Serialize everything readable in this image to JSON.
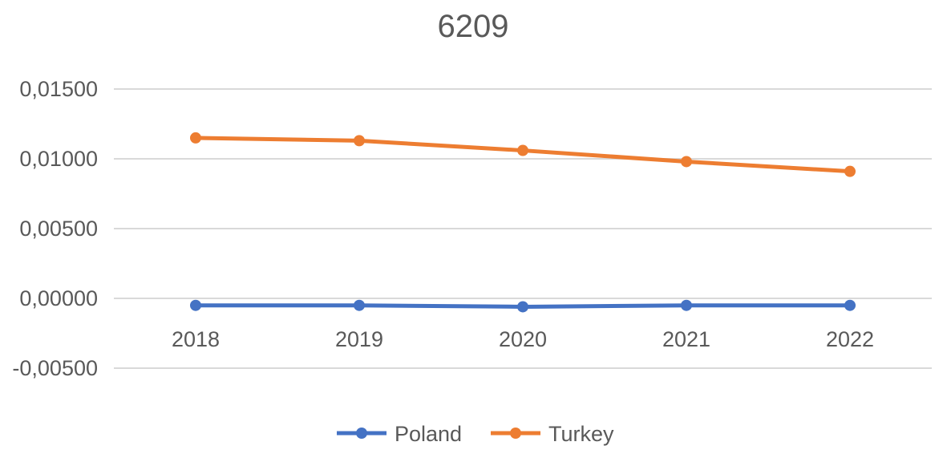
{
  "chart_data": {
    "type": "line",
    "title": "6209",
    "categories": [
      "2018",
      "2019",
      "2020",
      "2021",
      "2022"
    ],
    "y_ticks": [
      "-0,00500",
      "0,00000",
      "0,00500",
      "0,01000",
      "0,01500"
    ],
    "ylim": [
      -0.005,
      0.015
    ],
    "grid": true,
    "legend_position": "bottom",
    "series": [
      {
        "name": "Poland",
        "color": "#4472c4",
        "values": [
          -0.0005,
          -0.0005,
          -0.0006,
          -0.0005,
          -0.0005
        ]
      },
      {
        "name": "Turkey",
        "color": "#ed7d31",
        "values": [
          0.0115,
          0.0113,
          0.0106,
          0.0098,
          0.0091
        ]
      }
    ]
  }
}
